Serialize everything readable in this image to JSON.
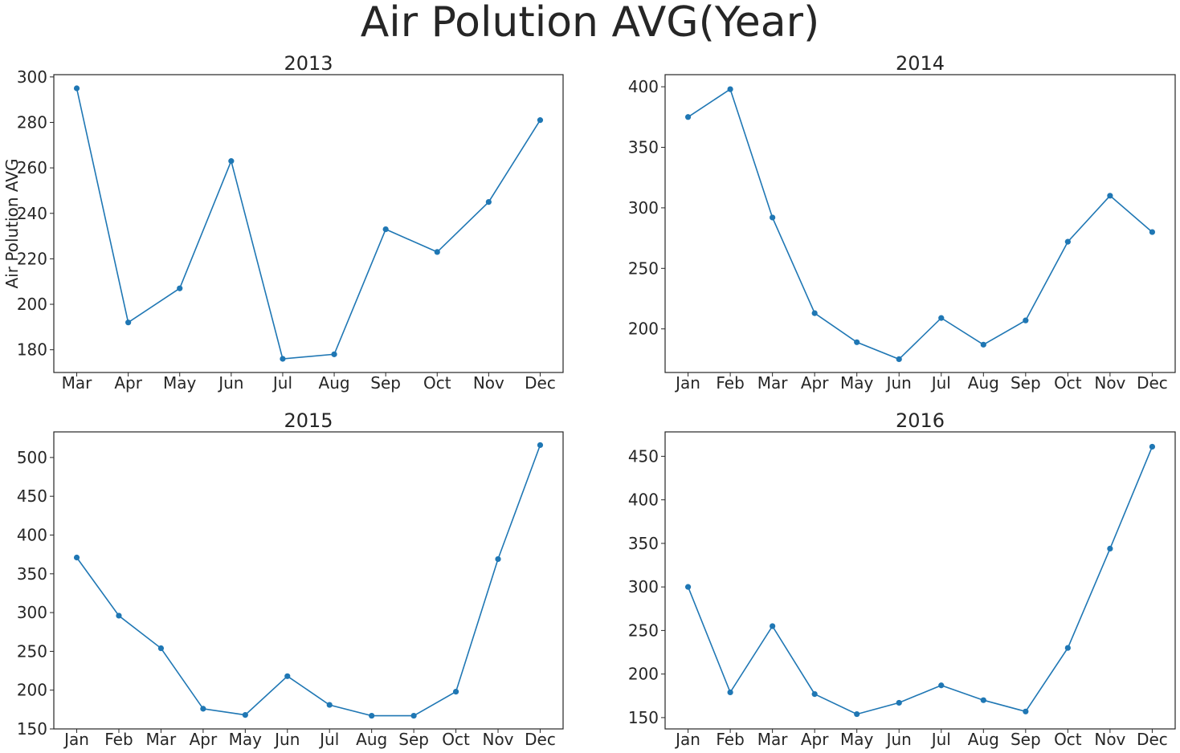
{
  "figure": {
    "title": "Air Polution AVG(Year)",
    "line_color": "#1f77b4",
    "frame_color": "#262626",
    "text_color": "#262626"
  },
  "chart_data": [
    {
      "type": "line",
      "title": "2013",
      "xlabel": "",
      "ylabel": "Air Polution AVG",
      "categories": [
        "Mar",
        "Apr",
        "May",
        "Jun",
        "Jul",
        "Aug",
        "Sep",
        "Oct",
        "Nov",
        "Dec"
      ],
      "series": [
        {
          "values": [
            295,
            192,
            207,
            263,
            176,
            178,
            233,
            223,
            245,
            281
          ]
        }
      ],
      "ylim": [
        170,
        301
      ],
      "yticks": [
        180,
        200,
        220,
        240,
        260,
        280,
        300
      ],
      "grid": false,
      "markers": true
    },
    {
      "type": "line",
      "title": "2014",
      "xlabel": "",
      "ylabel": "",
      "categories": [
        "Jan",
        "Feb",
        "Mar",
        "Apr",
        "May",
        "Jun",
        "Jul",
        "Aug",
        "Sep",
        "Oct",
        "Nov",
        "Dec"
      ],
      "series": [
        {
          "values": [
            375,
            398,
            292,
            213,
            189,
            175,
            209,
            187,
            207,
            272,
            310,
            280
          ]
        }
      ],
      "ylim": [
        164,
        410
      ],
      "yticks": [
        200,
        250,
        300,
        350,
        400
      ],
      "grid": false,
      "markers": true
    },
    {
      "type": "line",
      "title": "2015",
      "xlabel": "",
      "ylabel": "",
      "categories": [
        "Jan",
        "Feb",
        "Mar",
        "Apr",
        "May",
        "Jun",
        "Jul",
        "Aug",
        "Sep",
        "Oct",
        "Nov",
        "Dec"
      ],
      "series": [
        {
          "values": [
            371,
            296,
            254,
            176,
            168,
            218,
            181,
            167,
            167,
            198,
            369,
            516
          ]
        }
      ],
      "ylim": [
        150,
        533
      ],
      "yticks": [
        150,
        200,
        250,
        300,
        350,
        400,
        450,
        500
      ],
      "grid": false,
      "markers": true
    },
    {
      "type": "line",
      "title": "2016",
      "xlabel": "",
      "ylabel": "",
      "categories": [
        "Jan",
        "Feb",
        "Mar",
        "Apr",
        "May",
        "Jun",
        "Jul",
        "Aug",
        "Sep",
        "Oct",
        "Nov",
        "Dec"
      ],
      "series": [
        {
          "values": [
            300,
            179,
            255,
            177,
            154,
            167,
            187,
            170,
            157,
            230,
            344,
            461
          ]
        }
      ],
      "ylim": [
        137,
        478
      ],
      "yticks": [
        150,
        200,
        250,
        300,
        350,
        400,
        450
      ],
      "grid": false,
      "markers": true
    }
  ]
}
